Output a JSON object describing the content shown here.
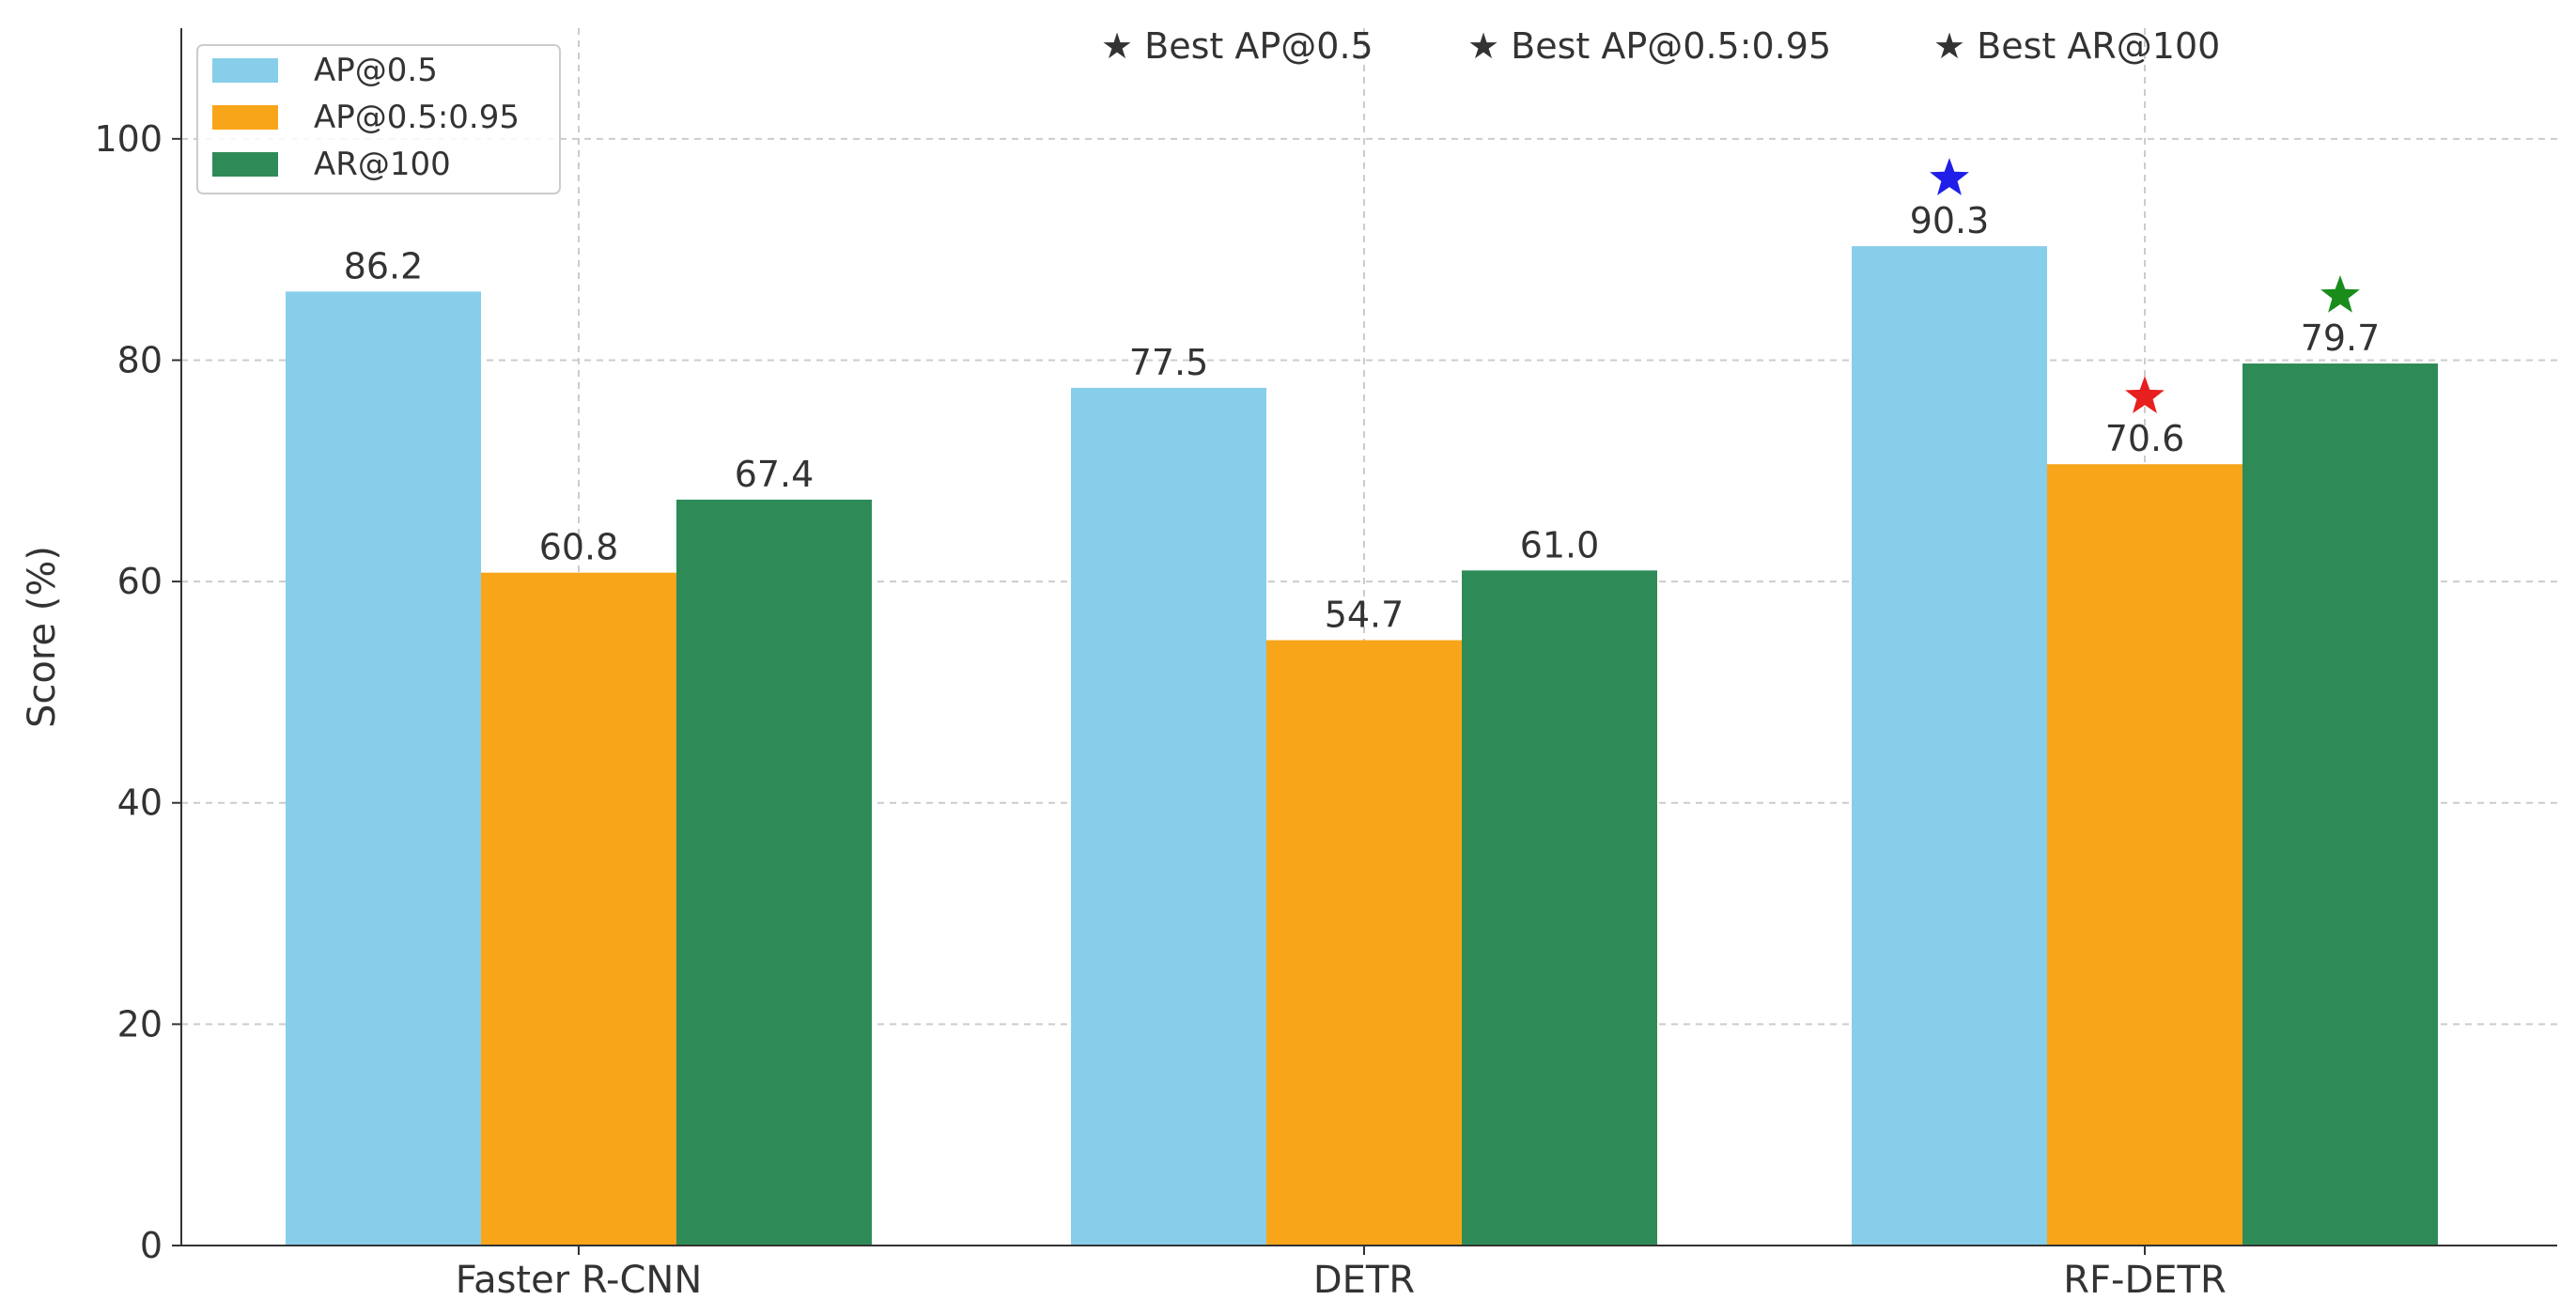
{
  "chart_data": {
    "type": "bar",
    "categories": [
      "Faster R-CNN",
      "DETR",
      "RF-DETR"
    ],
    "series": [
      {
        "name": "AP@0.5",
        "color": "#87CEEB",
        "values": [
          86.2,
          77.5,
          90.3
        ]
      },
      {
        "name": "AP@0.5:0.95",
        "color": "#F9A51A",
        "values": [
          60.8,
          54.7,
          70.6
        ]
      },
      {
        "name": "AR@100",
        "color": "#2E8B57",
        "values": [
          67.4,
          61.0,
          79.7
        ]
      }
    ],
    "data_labels": [
      [
        "86.2",
        "77.5",
        "90.3"
      ],
      [
        "60.8",
        "54.7",
        "70.6"
      ],
      [
        "67.4",
        "61.0",
        "79.7"
      ]
    ],
    "ylabel": "Score (%)",
    "xlabel": "",
    "ylim": [
      0,
      110
    ],
    "yticks": [
      0,
      20,
      40,
      60,
      80,
      100
    ],
    "grid": true,
    "legend_position": "top-left",
    "best_markers": [
      {
        "label": "Best AP@0.5",
        "series_index": 0,
        "category_index": 2,
        "color": "#1F1FE8"
      },
      {
        "label": "Best AP@0.5:0.95",
        "series_index": 1,
        "category_index": 2,
        "color": "#E81F1F"
      },
      {
        "label": "Best AR@100",
        "series_index": 2,
        "category_index": 2,
        "color": "#1A8C1A"
      }
    ],
    "best_legend_symbol": "★"
  }
}
